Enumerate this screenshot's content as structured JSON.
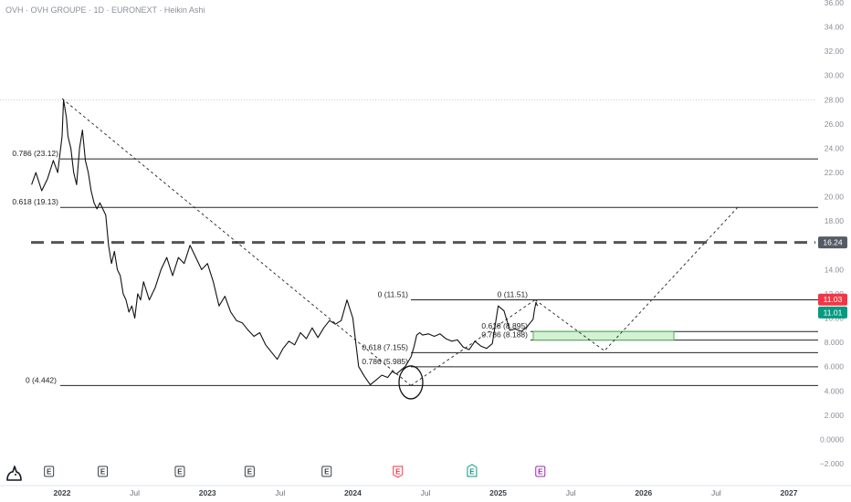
{
  "header": {
    "title": "OVH · OVH GROUPE · 1D · EURONEXT · Heikin Ashi"
  },
  "chart_data": {
    "type": "line",
    "title": "OVH · OVH GROUPE · 1D · EURONEXT · Heikin Ashi",
    "xlabel": "",
    "ylabel": "",
    "ylim": [
      -2,
      36
    ],
    "y_ticks": [
      "36.00",
      "34.00",
      "32.00",
      "30.00",
      "28.00",
      "26.00",
      "24.00",
      "22.00",
      "20.00",
      "18.00",
      "16.00",
      "14.00",
      "12.00",
      "10.00",
      "8.000",
      "6.000",
      "4.000",
      "2.000",
      "0.0000",
      "−2.000"
    ],
    "x_ticks": [
      {
        "label": "2022",
        "year": true,
        "t": 2022.0
      },
      {
        "label": "Jul",
        "year": false,
        "t": 2022.5
      },
      {
        "label": "2023",
        "year": true,
        "t": 2023.0
      },
      {
        "label": "Jul",
        "year": false,
        "t": 2023.5
      },
      {
        "label": "2024",
        "year": true,
        "t": 2024.0
      },
      {
        "label": "Jul",
        "year": false,
        "t": 2024.5
      },
      {
        "label": "2025",
        "year": true,
        "t": 2025.0
      },
      {
        "label": "Jul",
        "year": false,
        "t": 2025.5
      },
      {
        "label": "2026",
        "year": true,
        "t": 2026.0
      },
      {
        "label": "Jul",
        "year": false,
        "t": 2026.5
      },
      {
        "label": "2027",
        "year": true,
        "t": 2027.0
      }
    ],
    "series": [
      {
        "x": [
          2021.79,
          2021.82,
          2021.86,
          2021.9,
          2021.94,
          2021.97,
          2022.0,
          2022.01,
          2022.03,
          2022.04,
          2022.06,
          2022.08,
          2022.1,
          2022.12,
          2022.14,
          2022.16,
          2022.18,
          2022.2,
          2022.22,
          2022.24,
          2022.26,
          2022.28,
          2022.3,
          2022.32,
          2022.34,
          2022.36,
          2022.38,
          2022.4,
          2022.42,
          2022.44,
          2022.46,
          2022.48,
          2022.5,
          2022.52,
          2022.54,
          2022.56,
          2022.6,
          2022.64,
          2022.68,
          2022.72,
          2022.76,
          2022.8,
          2022.84,
          2022.88,
          2022.92,
          2022.96,
          2023.0,
          2023.04,
          2023.08,
          2023.12,
          2023.16,
          2023.2,
          2023.24,
          2023.28,
          2023.32,
          2023.36,
          2023.4,
          2023.44,
          2023.48,
          2023.52,
          2023.56,
          2023.6,
          2023.64,
          2023.68,
          2023.72,
          2023.76,
          2023.8,
          2023.84,
          2023.88,
          2023.92,
          2023.96,
          2024.0,
          2024.04,
          2024.08,
          2024.12,
          2024.16,
          2024.2,
          2024.24,
          2024.27,
          2024.3,
          2024.32,
          2024.34,
          2024.36,
          2024.38,
          2024.4,
          2024.42,
          2024.44,
          2024.46,
          2024.48,
          2024.52,
          2024.56,
          2024.6,
          2024.64,
          2024.68,
          2024.72,
          2024.76,
          2024.8,
          2024.84,
          2024.88,
          2024.92,
          2024.96,
          2025.0,
          2025.04,
          2025.08,
          2025.12,
          2025.16,
          2025.2,
          2025.22,
          2025.24,
          2025.25,
          2025.26,
          2025.27
        ],
        "values": [
          21,
          22,
          20.5,
          21.5,
          23,
          22,
          25,
          28,
          26.5,
          25,
          24,
          22,
          21,
          24,
          25.5,
          23,
          22,
          20.5,
          19.5,
          19,
          19.5,
          19,
          18.5,
          16,
          14.5,
          15.5,
          14,
          13.5,
          12,
          11.5,
          10.5,
          11,
          10,
          12,
          11.5,
          13,
          11.5,
          12.5,
          14,
          15,
          13.5,
          15,
          14.5,
          16,
          15,
          14,
          14.5,
          13,
          11,
          11.8,
          10.5,
          9.8,
          9.6,
          9,
          8.5,
          8.8,
          7.8,
          7.2,
          6.6,
          7.5,
          8.1,
          7.8,
          8.8,
          8.3,
          9.2,
          8.4,
          9.2,
          9.8,
          9.5,
          9.8,
          11.5,
          10,
          6,
          5.2,
          4.5,
          4.9,
          5.3,
          5.1,
          5.6,
          5.4,
          5.6,
          5.8,
          6.0,
          6.4,
          6.8,
          7.6,
          8.6,
          8.8,
          8.6,
          8.7,
          8.5,
          8.7,
          8.3,
          8.1,
          8.2,
          7.6,
          7.4,
          8.1,
          7.7,
          7.5,
          7.9,
          11.0,
          10.6,
          9.0,
          9.1,
          8.9,
          9.3,
          9.6,
          9.9,
          10.7,
          11.3,
          11.0
        ]
      }
    ],
    "fib_levels": [
      {
        "label": "0.786 (23.12)",
        "value": 23.12
      },
      {
        "label": "0.618 (19.13)",
        "value": 19.13
      },
      {
        "label": "0 (4.442)",
        "value": 4.442
      },
      {
        "label": "0 (11.51)",
        "value": 11.51
      },
      {
        "label": "0.618 (7.155)",
        "value": 7.155
      },
      {
        "label": "0.786 (5.985)",
        "value": 5.985
      },
      {
        "label": "0 (11.51)",
        "value": 11.51
      },
      {
        "label": "0.618 (8.895)",
        "value": 8.895
      },
      {
        "label": "0.786 (8.188)",
        "value": 8.188
      }
    ],
    "dashed_level": {
      "value": 16.24,
      "label": "16.24"
    },
    "price_tags": [
      {
        "label": "11.03",
        "value": 11.03,
        "color": "#f23645"
      },
      {
        "label": "11.01",
        "value": 11.01,
        "color": "#089981"
      }
    ],
    "events": [
      {
        "label": "E",
        "color": "#3a3f47",
        "t": 2021.91
      },
      {
        "label": "E",
        "color": "#3a3f47",
        "t": 2022.28
      },
      {
        "label": "E",
        "color": "#3a3f47",
        "t": 2022.81
      },
      {
        "label": "E",
        "color": "#3a3f47",
        "t": 2023.29
      },
      {
        "label": "E",
        "color": "#3a3f47",
        "t": 2023.82
      },
      {
        "label": "E",
        "color": "#f23645",
        "t": 2024.31
      },
      {
        "label": "E",
        "color": "#089981",
        "t": 2024.82
      },
      {
        "label": "E",
        "color": "#9c27b0",
        "t": 2025.29
      }
    ],
    "grid": false,
    "legend": "none"
  }
}
